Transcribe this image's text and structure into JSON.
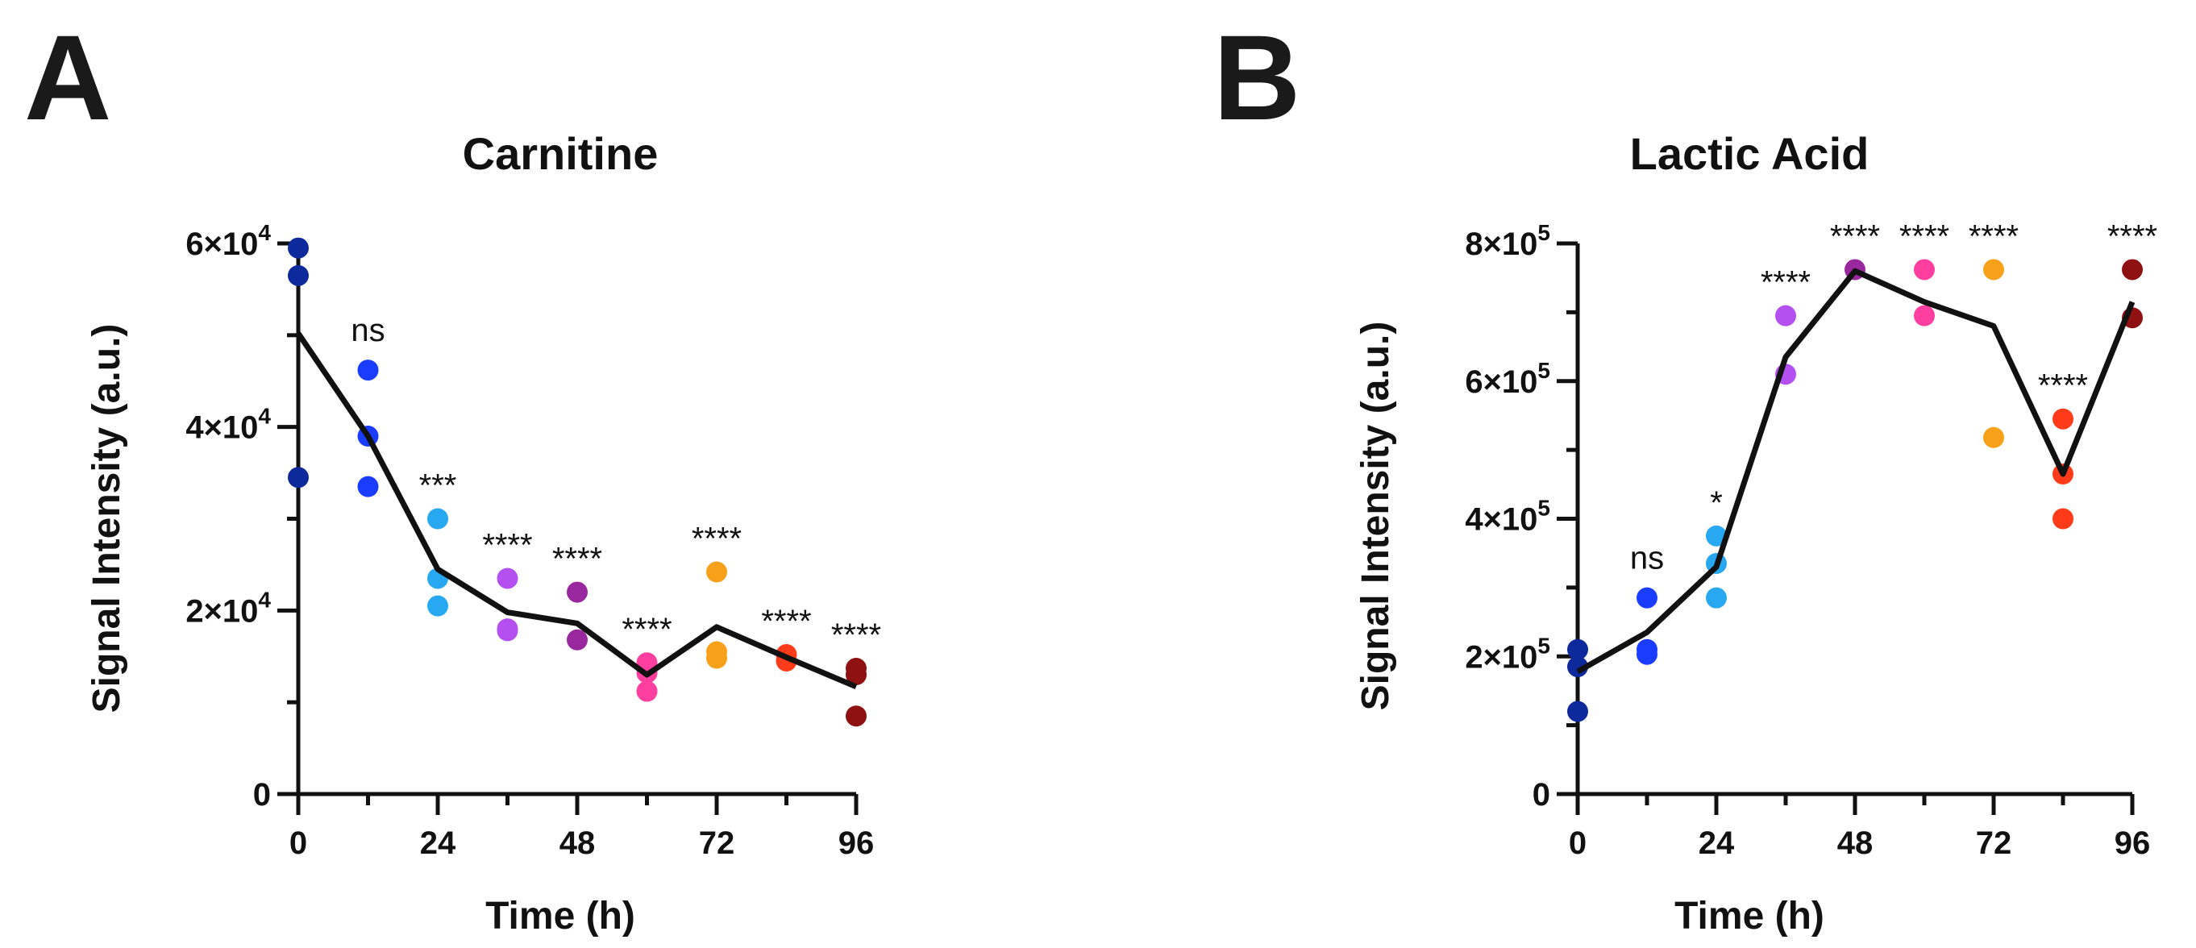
{
  "chart_data": [
    {
      "panel": "A",
      "type": "scatter",
      "title": "Carnitine",
      "xlabel": "Time (h)",
      "ylabel": "Signal Intensity (a.u.)",
      "xlim": [
        0,
        96
      ],
      "ylim": [
        0,
        60000
      ],
      "x_ticks": [
        {
          "value": 0,
          "label": "0"
        },
        {
          "value": 24,
          "label": "24"
        },
        {
          "value": 48,
          "label": "48"
        },
        {
          "value": 72,
          "label": "72"
        },
        {
          "value": 96,
          "label": "96"
        }
      ],
      "x_minor_ticks": [
        12,
        36,
        60,
        84
      ],
      "y_ticks": [
        {
          "value": 0,
          "label": "0"
        },
        {
          "value": 20000,
          "base": "2×10",
          "exp": "4"
        },
        {
          "value": 40000,
          "base": "4×10",
          "exp": "4"
        },
        {
          "value": 60000,
          "base": "6×10",
          "exp": "4"
        }
      ],
      "y_minor_ticks": [
        10000,
        30000,
        50000
      ],
      "groups": [
        {
          "x": 0,
          "color": "#0d2a9c",
          "points": [
            59500,
            56500,
            34500
          ],
          "mean": 50200,
          "sig": ""
        },
        {
          "x": 12,
          "color": "#1a3cff",
          "points": [
            46200,
            39000,
            33500
          ],
          "mean": 39000,
          "sig": "ns"
        },
        {
          "x": 24,
          "color": "#29a8f2",
          "points": [
            30000,
            23500,
            20500
          ],
          "mean": 24500,
          "sig": "***"
        },
        {
          "x": 36,
          "color": "#b44ff0",
          "points": [
            23500,
            18000,
            17800
          ],
          "mean": 19800,
          "sig": "****"
        },
        {
          "x": 48,
          "color": "#99289e",
          "points": [
            22000,
            16800
          ],
          "mean": 18600,
          "sig": "****"
        },
        {
          "x": 60,
          "color": "#ff3f9f",
          "points": [
            14300,
            13200,
            11200
          ],
          "mean": 13000,
          "sig": "****"
        },
        {
          "x": 72,
          "color": "#f7a11a",
          "points": [
            24200,
            15500,
            14800
          ],
          "mean": 18200,
          "sig": "****"
        },
        {
          "x": 84,
          "color": "#ff3b1a",
          "points": [
            15200,
            14500
          ],
          "mean": 14900,
          "sig": "****"
        },
        {
          "x": 96,
          "color": "#8f1111",
          "points": [
            13700,
            13000,
            8500
          ],
          "mean": 11700,
          "sig": "****"
        }
      ]
    },
    {
      "panel": "B",
      "type": "scatter",
      "title": "Lactic Acid",
      "xlabel": "Time (h)",
      "ylabel": "Signal Intensity (a.u.)",
      "xlim": [
        0,
        96
      ],
      "ylim": [
        0,
        800000
      ],
      "x_ticks": [
        {
          "value": 0,
          "label": "0"
        },
        {
          "value": 24,
          "label": "24"
        },
        {
          "value": 48,
          "label": "48"
        },
        {
          "value": 72,
          "label": "72"
        },
        {
          "value": 96,
          "label": "96"
        }
      ],
      "x_minor_ticks": [
        12,
        36,
        60,
        84
      ],
      "y_ticks": [
        {
          "value": 0,
          "label": "0"
        },
        {
          "value": 200000,
          "base": "2×10",
          "exp": "5"
        },
        {
          "value": 400000,
          "base": "4×10",
          "exp": "5"
        },
        {
          "value": 600000,
          "base": "6×10",
          "exp": "5"
        },
        {
          "value": 800000,
          "base": "8×10",
          "exp": "5"
        }
      ],
      "y_minor_ticks": [
        100000,
        300000,
        500000,
        700000
      ],
      "groups": [
        {
          "x": 0,
          "color": "#0d2a9c",
          "points": [
            210000,
            185000,
            120000
          ],
          "mean": 178000,
          "sig": ""
        },
        {
          "x": 12,
          "color": "#1a3cff",
          "points": [
            285000,
            210000,
            203000
          ],
          "mean": 235000,
          "sig": "ns"
        },
        {
          "x": 24,
          "color": "#29a8f2",
          "points": [
            375000,
            335000,
            285000
          ],
          "mean": 330000,
          "sig": "*"
        },
        {
          "x": 36,
          "color": "#b44ff0",
          "points": [
            695000,
            610000
          ],
          "mean": 635000,
          "sig": "****"
        },
        {
          "x": 48,
          "color": "#99289e",
          "points": [
            762000
          ],
          "mean": 760000,
          "sig": "****"
        },
        {
          "x": 60,
          "color": "#ff3f9f",
          "points": [
            762000,
            695000
          ],
          "mean": 715000,
          "sig": "****"
        },
        {
          "x": 72,
          "color": "#f7a11a",
          "points": [
            762000,
            518000
          ],
          "mean": 680000,
          "sig": "****"
        },
        {
          "x": 84,
          "color": "#ff3b1a",
          "points": [
            545000,
            465000,
            400000
          ],
          "mean": 465000,
          "sig": "****"
        },
        {
          "x": 96,
          "color": "#8f1111",
          "points": [
            762000,
            692000
          ],
          "mean": 715000,
          "sig": "****"
        }
      ]
    }
  ]
}
